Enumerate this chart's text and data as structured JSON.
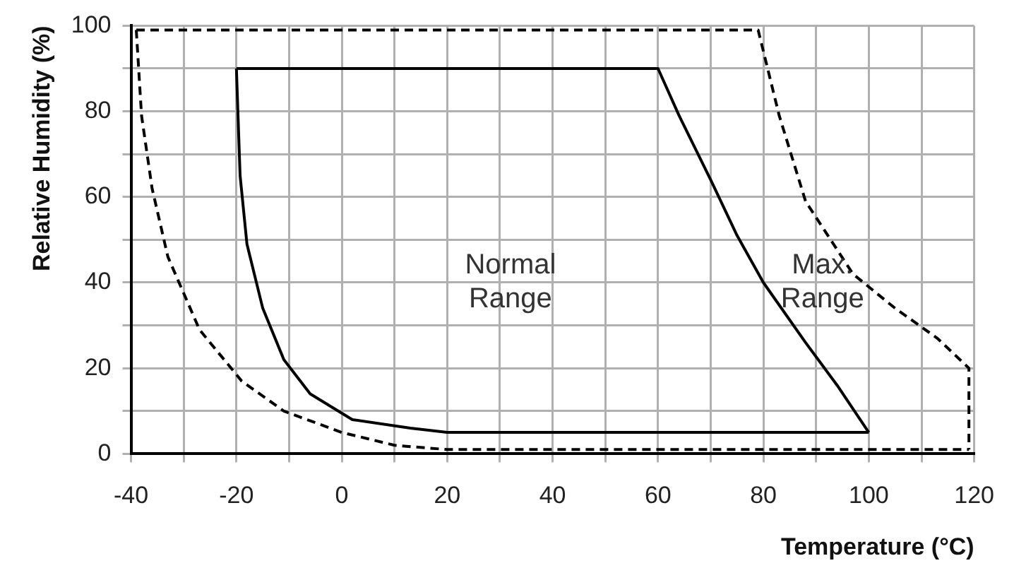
{
  "chart_data": {
    "type": "line",
    "xlabel": "Temperature (°C)",
    "ylabel": "Relative Humidity (%)",
    "xlim": [
      -40,
      120
    ],
    "ylim": [
      0,
      100
    ],
    "xticks": [
      -40,
      {
        "value": -30,
        "label": null
      },
      -20,
      {
        "value": -10,
        "label": null
      },
      0,
      {
        "value": 10,
        "label": null
      },
      20,
      {
        "value": 30,
        "label": null
      },
      40,
      {
        "value": 50,
        "label": null
      },
      60,
      {
        "value": 70,
        "label": null
      },
      80,
      {
        "value": 90,
        "label": null
      },
      100,
      {
        "value": 110,
        "label": null
      },
      120
    ],
    "yticks": [
      0,
      {
        "value": 10,
        "label": null
      },
      20,
      {
        "value": 30,
        "label": null
      },
      40,
      {
        "value": 50,
        "label": null
      },
      60,
      {
        "value": 70,
        "label": null
      },
      80,
      {
        "value": 90,
        "label": null
      },
      100
    ],
    "grid": true,
    "legend": false,
    "marker": "none",
    "series": [
      {
        "color": "#000000",
        "line_style": "solid",
        "x": [
          -20,
          60,
          64,
          70,
          75,
          80,
          88,
          94,
          100
        ],
        "values": [
          90,
          90,
          79,
          64,
          51,
          40,
          26,
          16,
          5
        ]
      },
      {
        "color": "#000000",
        "line_style": "solid",
        "x": [
          -20,
          -19.3,
          -18,
          -15,
          -11,
          -6,
          2,
          13,
          20,
          100
        ],
        "values": [
          90,
          65,
          49,
          34,
          22,
          14,
          8,
          6,
          5,
          5
        ]
      },
      {
        "color": "#000000",
        "line_style": "dashed",
        "x": [
          -39,
          79,
          83,
          88,
          97,
          105,
          113,
          119,
          119
        ],
        "values": [
          99,
          99,
          79,
          59,
          42,
          34,
          27,
          20,
          1
        ]
      },
      {
        "color": "#000000",
        "line_style": "dashed",
        "x": [
          -39,
          -38,
          -36,
          -33,
          -27,
          -19,
          -11,
          0,
          10,
          20,
          119
        ],
        "values": [
          99,
          79,
          62,
          46,
          29,
          17,
          10,
          5,
          2,
          1,
          1
        ]
      }
    ],
    "annotations": [
      "Normal\nRange",
      "Max.\nRange"
    ]
  }
}
